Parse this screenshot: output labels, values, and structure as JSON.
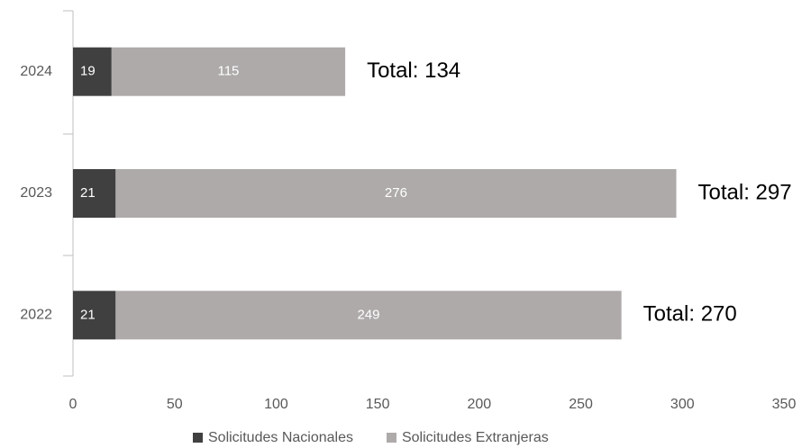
{
  "chart_data": {
    "type": "stacked-barh",
    "categories": [
      "2024",
      "2023",
      "2022"
    ],
    "series": [
      {
        "name": "Solicitudes Nacionales",
        "color": "#404040",
        "values": [
          19,
          21,
          21
        ]
      },
      {
        "name": "Solicitudes Extranjeras",
        "color": "#aeaaaa",
        "values": [
          115,
          276,
          249
        ]
      }
    ],
    "annotations": [
      "Total: 134",
      "Total: 297",
      "Total: 270"
    ],
    "xlim": [
      0,
      350
    ],
    "xticks": [
      0,
      50,
      100,
      150,
      200,
      250,
      300,
      350
    ],
    "legend": "bottom"
  }
}
